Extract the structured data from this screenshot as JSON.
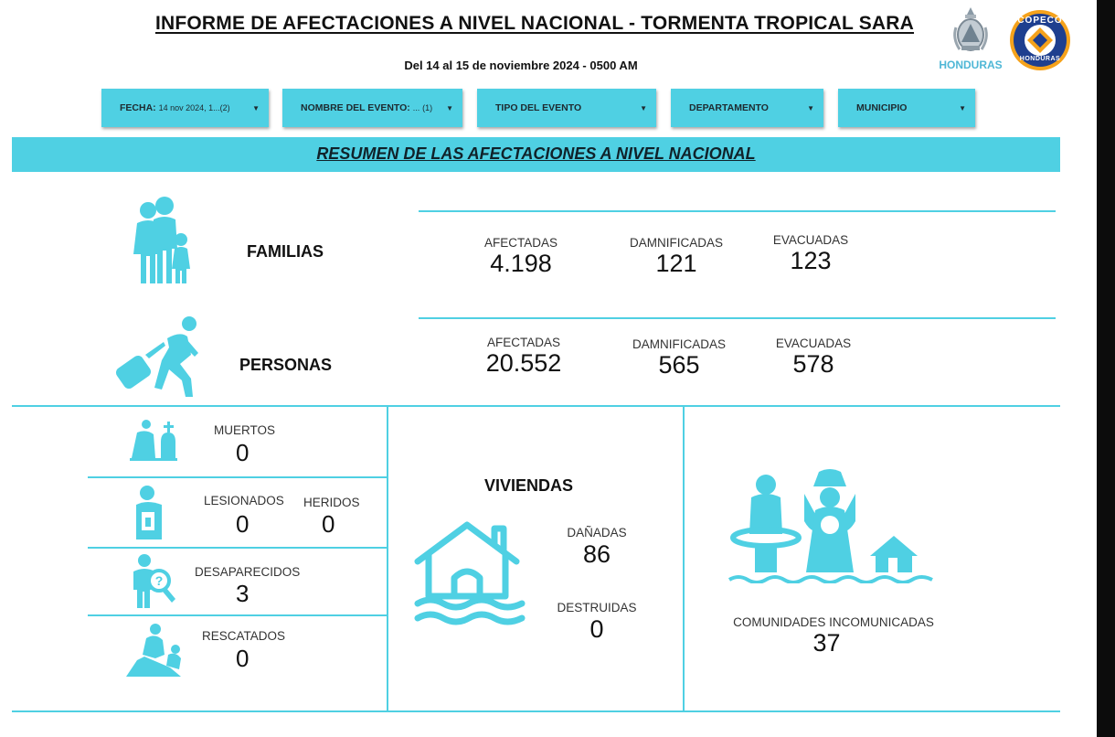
{
  "header": {
    "title": "INFORME DE AFECTACIONES A NIVEL NACIONAL - TORMENTA TROPICAL SARA",
    "subtitle": "Del 14 al 15 de noviembre 2024 - 0500 AM",
    "logo_honduras": "HONDURAS",
    "logo_copeco_top": "COPECO",
    "logo_copeco_bottom": "HONDURAS"
  },
  "filters": [
    {
      "label": "FECHA:",
      "value": "14 nov 2024, 1...",
      "count": "(2)"
    },
    {
      "label": "NOMBRE DEL EVENTO:",
      "value": "...",
      "count": "(1)"
    },
    {
      "label": "TIPO DEL EVENTO",
      "value": "",
      "count": ""
    },
    {
      "label": "DEPARTAMENTO",
      "value": "",
      "count": ""
    },
    {
      "label": "MUNICIPIO",
      "value": "",
      "count": ""
    }
  ],
  "banner": "RESUMEN DE LAS AFECTACIONES A NIVEL NACIONAL",
  "familias": {
    "label": "FAMILIAS",
    "afectadas_label": "AFECTADAS",
    "afectadas": "4.198",
    "damnificadas_label": "DAMNIFICADAS",
    "damnificadas": "121",
    "evacuadas_label": "EVACUADAS",
    "evacuadas": "123"
  },
  "personas": {
    "label": "PERSONAS",
    "afectadas_label": "AFECTADAS",
    "afectadas": "20.552",
    "damnificadas_label": "DAMNIFICADAS",
    "damnificadas": "565",
    "evacuadas_label": "EVACUADAS",
    "evacuadas": "578"
  },
  "victimas": {
    "muertos_label": "MUERTOS",
    "muertos": "0",
    "lesionados_label": "LESIONADOS",
    "lesionados": "0",
    "heridos_label": "HERIDOS",
    "heridos": "0",
    "desaparecidos_label": "DESAPARECIDOS",
    "desaparecidos": "3",
    "rescatados_label": "RESCATADOS",
    "rescatados": "0"
  },
  "viviendas": {
    "label": "VIVIENDAS",
    "danadas_label": "DAÑADAS",
    "danadas": "86",
    "destruidas_label": "DESTRUIDAS",
    "destruidas": "0"
  },
  "comunidades": {
    "label": "COMUNIDADES INCOMUNICADAS",
    "value": "37"
  },
  "colors": {
    "accent": "#4fd0e3",
    "icon": "#4fd0e3",
    "text": "#111111"
  }
}
